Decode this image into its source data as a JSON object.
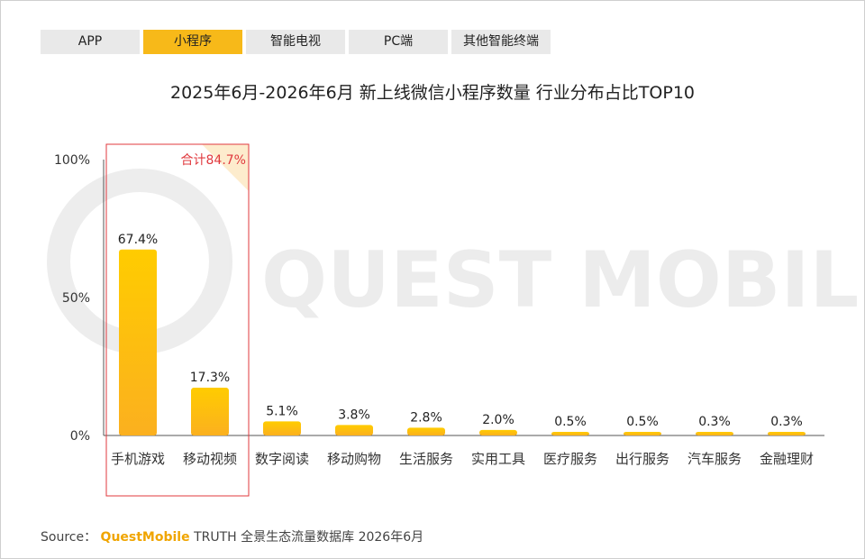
{
  "tabs": [
    {
      "label": "APP",
      "active": false
    },
    {
      "label": "小程序",
      "active": true
    },
    {
      "label": "智能电视",
      "active": false
    },
    {
      "label": "PC端",
      "active": false
    },
    {
      "label": "其他智能终端",
      "active": false
    }
  ],
  "watermark": "QUEST MOBILE",
  "source": {
    "prefix": "Source：",
    "brand": "QuestMobile",
    "text": "TRUTH 全景生态流量数据库 2026年6月"
  },
  "chart_data": {
    "type": "bar",
    "title": "2025年6月-2026年6月 新上线微信小程序数量 行业分布占比TOP10",
    "categories": [
      "手机游戏",
      "移动视频",
      "数字阅读",
      "移动购物",
      "生活服务",
      "实用工具",
      "医疗服务",
      "出行服务",
      "汽车服务",
      "金融理财"
    ],
    "values": [
      67.4,
      17.3,
      5.1,
      3.8,
      2.8,
      2.0,
      0.5,
      0.5,
      0.3,
      0.3
    ],
    "value_labels": [
      "67.4%",
      "17.3%",
      "5.1%",
      "3.8%",
      "2.8%",
      "2.0%",
      "0.5%",
      "0.5%",
      "0.3%",
      "0.3%"
    ],
    "yticks": [
      0,
      50,
      100
    ],
    "ytick_labels": [
      "0%",
      "50%",
      "100%"
    ],
    "ylim": [
      0,
      100
    ],
    "grid": false,
    "highlight": {
      "categories": [
        "手机游戏",
        "移动视频"
      ],
      "label": "合计84.7%"
    },
    "colors": {
      "bar_top": "#ffcc00",
      "bar_bottom": "#fbb01f",
      "highlight_border": "#e0393e",
      "highlight_text": "#e0393e"
    }
  }
}
